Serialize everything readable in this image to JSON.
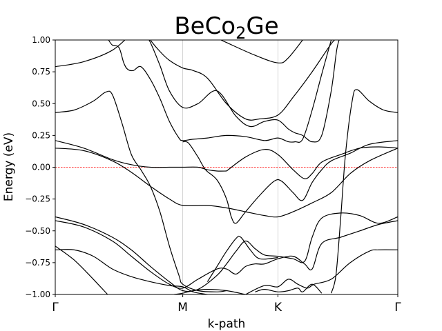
{
  "chart_data": {
    "type": "line",
    "title": "BeCo",
    "title_subscript": "2",
    "title_suffix": "Ge",
    "xlabel": "k-path",
    "ylabel": "Energy (eV)",
    "ylim": [
      -1.0,
      1.0
    ],
    "xlim": [
      0,
      3.6
    ],
    "high_symmetry_points": [
      {
        "label": "Γ",
        "x": 0
      },
      {
        "label": "M",
        "x": 1.34
      },
      {
        "label": "K",
        "x": 2.34
      },
      {
        "label": "Γ",
        "x": 3.6
      }
    ],
    "yticks": [
      {
        "value": -1.0,
        "label": "−1.00"
      },
      {
        "value": -0.75,
        "label": "−0.75"
      },
      {
        "value": -0.5,
        "label": "−0.50"
      },
      {
        "value": -0.25,
        "label": "−0.25"
      },
      {
        "value": 0.0,
        "label": "0.00"
      },
      {
        "value": 0.25,
        "label": "0.25"
      },
      {
        "value": 0.5,
        "label": "0.50"
      },
      {
        "value": 0.75,
        "label": "0.75"
      },
      {
        "value": 1.0,
        "label": "1.00"
      }
    ],
    "fermi_level": 0.0,
    "colors": {
      "bands": "#000000",
      "fermi": "#ff0000",
      "vlines": "#c8c8c8"
    },
    "grid": "vertical lines at high-symmetry points",
    "series": [
      {
        "values": [
          [
            0,
            0.79
          ],
          [
            0.3,
            0.83
          ],
          [
            0.6,
            0.92
          ],
          [
            0.8,
            1.05
          ]
        ]
      },
      {
        "values": [
          [
            1.6,
            1.05
          ],
          [
            1.8,
            0.98
          ],
          [
            2.1,
            0.88
          ],
          [
            2.34,
            0.82
          ],
          [
            2.45,
            0.86
          ],
          [
            2.65,
            1.05
          ]
        ]
      },
      {
        "values": [
          [
            0.56,
            1.0
          ],
          [
            0.6,
            0.96
          ],
          [
            0.67,
            0.94
          ],
          [
            0.72,
            0.82
          ],
          [
            0.76,
            0.77
          ],
          [
            0.82,
            0.76
          ],
          [
            0.9,
            0.79
          ],
          [
            1.0,
            0.69
          ],
          [
            1.1,
            0.54
          ],
          [
            1.2,
            0.36
          ],
          [
            1.3,
            0.23
          ],
          [
            1.34,
            0.21
          ],
          [
            1.45,
            0.22
          ],
          [
            1.6,
            0.23
          ],
          [
            1.8,
            0.25
          ],
          [
            2.0,
            0.24
          ],
          [
            2.2,
            0.21
          ],
          [
            2.34,
            0.23
          ],
          [
            2.45,
            0.2
          ],
          [
            2.52,
            0.2
          ],
          [
            2.6,
            0.22
          ],
          [
            2.7,
            0.45
          ],
          [
            2.8,
            0.73
          ],
          [
            2.9,
            1.0
          ]
        ]
      },
      {
        "values": [
          [
            0.97,
            1.05
          ],
          [
            1.0,
            1.0
          ],
          [
            1.1,
            0.91
          ],
          [
            1.2,
            0.84
          ],
          [
            1.34,
            0.78
          ],
          [
            1.45,
            0.76
          ],
          [
            1.6,
            0.7
          ],
          [
            1.8,
            0.5
          ],
          [
            2.0,
            0.38
          ],
          [
            2.15,
            0.38
          ],
          [
            2.34,
            0.41
          ],
          [
            2.5,
            0.55
          ],
          [
            2.7,
            0.75
          ],
          [
            2.9,
            0.97
          ],
          [
            2.96,
            1.01
          ]
        ]
      },
      {
        "values": [
          [
            0.94,
            1.05
          ],
          [
            1.0,
            0.98
          ],
          [
            1.1,
            0.8
          ],
          [
            1.2,
            0.6
          ],
          [
            1.34,
            0.47
          ],
          [
            1.5,
            0.5
          ],
          [
            1.7,
            0.6
          ],
          [
            1.9,
            0.4
          ],
          [
            2.05,
            0.32
          ],
          [
            2.2,
            0.36
          ],
          [
            2.34,
            0.37
          ],
          [
            2.45,
            0.3
          ],
          [
            2.52,
            0.27
          ],
          [
            2.6,
            0.25
          ],
          [
            2.7,
            0.2
          ],
          [
            2.8,
            0.25
          ],
          [
            2.9,
            0.6
          ],
          [
            2.96,
            0.93
          ],
          [
            3.0,
            1.03
          ]
        ]
      },
      {
        "values": [
          [
            0,
            0.43
          ],
          [
            0.2,
            0.45
          ],
          [
            0.4,
            0.52
          ],
          [
            0.53,
            0.59
          ],
          [
            0.6,
            0.57
          ],
          [
            0.7,
            0.35
          ],
          [
            0.8,
            0.1
          ],
          [
            0.9,
            -0.02
          ],
          [
            1.0,
            -0.15
          ],
          [
            1.1,
            -0.35
          ],
          [
            1.2,
            -0.62
          ],
          [
            1.3,
            -0.85
          ],
          [
            1.34,
            -0.92
          ],
          [
            1.5,
            -0.97
          ],
          [
            1.7,
            -0.98
          ],
          [
            1.8,
            -0.97
          ]
        ]
      },
      {
        "values": [
          [
            2.9,
            -0.99
          ],
          [
            2.95,
            -0.85
          ],
          [
            3.0,
            -0.4
          ],
          [
            3.05,
            0.1
          ],
          [
            3.12,
            0.52
          ],
          [
            3.17,
            0.61
          ],
          [
            3.3,
            0.52
          ],
          [
            3.45,
            0.45
          ],
          [
            3.6,
            0.43
          ]
        ]
      },
      {
        "values": [
          [
            0,
            0.21
          ],
          [
            0.3,
            0.15
          ],
          [
            0.6,
            0.06
          ],
          [
            0.8,
            0.02
          ],
          [
            1.0,
            0.0
          ],
          [
            1.2,
            0.0
          ],
          [
            1.34,
            0.0
          ],
          [
            1.5,
            0.0
          ],
          [
            1.6,
            -0.02
          ],
          [
            1.7,
            -0.03
          ],
          [
            1.8,
            -0.03
          ]
        ]
      },
      {
        "values": [
          [
            1.34,
            0.2
          ],
          [
            1.4,
            0.19
          ],
          [
            1.5,
            0.08
          ],
          [
            1.58,
            -0.02
          ],
          [
            1.7,
            -0.1
          ],
          [
            1.8,
            -0.25
          ],
          [
            1.85,
            -0.39
          ],
          [
            1.9,
            -0.44
          ],
          [
            2.0,
            -0.35
          ],
          [
            2.15,
            -0.22
          ],
          [
            2.3,
            -0.11
          ],
          [
            2.38,
            -0.11
          ],
          [
            2.5,
            -0.2
          ],
          [
            2.6,
            -0.26
          ],
          [
            2.7,
            -0.12
          ],
          [
            2.8,
            -0.02
          ],
          [
            2.9,
            0.05
          ],
          [
            3.1,
            0.11
          ],
          [
            3.3,
            0.18
          ],
          [
            3.6,
            0.21
          ]
        ]
      },
      {
        "values": [
          [
            1.8,
            -0.03
          ],
          [
            2.0,
            0.08
          ],
          [
            2.2,
            0.14
          ],
          [
            2.34,
            0.1
          ],
          [
            2.5,
            -0.02
          ],
          [
            2.62,
            -0.09
          ],
          [
            2.7,
            -0.05
          ],
          [
            2.8,
            0.04
          ],
          [
            3.0,
            0.1
          ],
          [
            3.2,
            0.15
          ],
          [
            3.4,
            0.16
          ],
          [
            3.6,
            0.15
          ]
        ]
      },
      {
        "values": [
          [
            0,
            0.15
          ],
          [
            0.3,
            0.13
          ],
          [
            0.6,
            0.05
          ],
          [
            0.8,
            -0.04
          ],
          [
            1.0,
            -0.15
          ],
          [
            1.2,
            -0.25
          ],
          [
            1.34,
            -0.3
          ],
          [
            1.6,
            -0.3
          ],
          [
            1.8,
            -0.32
          ],
          [
            2.0,
            -0.35
          ],
          [
            2.2,
            -0.38
          ],
          [
            2.34,
            -0.39
          ],
          [
            2.5,
            -0.35
          ],
          [
            2.7,
            -0.28
          ],
          [
            2.9,
            -0.2
          ],
          [
            3.1,
            -0.05
          ],
          [
            3.3,
            0.05
          ],
          [
            3.6,
            0.15
          ]
        ]
      },
      {
        "values": [
          [
            0,
            -0.39
          ],
          [
            0.3,
            -0.45
          ],
          [
            0.6,
            -0.55
          ],
          [
            0.8,
            -0.65
          ],
          [
            1.0,
            -0.78
          ],
          [
            1.2,
            -0.9
          ],
          [
            1.34,
            -0.97
          ],
          [
            1.5,
            -0.96
          ],
          [
            1.7,
            -0.85
          ],
          [
            1.8,
            -0.76
          ],
          [
            1.9,
            -0.66
          ],
          [
            2.0,
            -0.58
          ],
          [
            2.1,
            -0.64
          ],
          [
            2.2,
            -0.69
          ],
          [
            2.34,
            -0.7
          ],
          [
            2.5,
            -0.72
          ],
          [
            2.62,
            -0.74
          ],
          [
            2.7,
            -0.55
          ],
          [
            2.8,
            -0.4
          ],
          [
            3.0,
            -0.36
          ],
          [
            3.2,
            -0.38
          ],
          [
            3.4,
            -0.44
          ],
          [
            3.6,
            -0.39
          ]
        ]
      },
      {
        "values": [
          [
            0,
            -0.42
          ],
          [
            0.3,
            -0.47
          ],
          [
            0.6,
            -0.58
          ],
          [
            0.8,
            -0.7
          ],
          [
            1.0,
            -0.82
          ],
          [
            1.2,
            -0.92
          ],
          [
            1.34,
            -0.95
          ],
          [
            1.5,
            -0.88
          ],
          [
            1.7,
            -0.8
          ],
          [
            1.8,
            -0.8
          ],
          [
            1.9,
            -0.84
          ],
          [
            2.0,
            -0.78
          ],
          [
            2.1,
            -0.76
          ],
          [
            2.2,
            -0.76
          ],
          [
            2.34,
            -0.72
          ],
          [
            2.5,
            -0.7
          ],
          [
            2.62,
            -0.76
          ],
          [
            2.7,
            -0.8
          ],
          [
            2.8,
            -0.6
          ],
          [
            3.0,
            -0.55
          ],
          [
            3.2,
            -0.5
          ],
          [
            3.4,
            -0.45
          ],
          [
            3.6,
            -0.42
          ]
        ]
      },
      {
        "values": [
          [
            0,
            -0.65
          ],
          [
            0.2,
            -0.65
          ],
          [
            0.4,
            -0.7
          ],
          [
            0.6,
            -0.8
          ],
          [
            0.8,
            -0.86
          ],
          [
            1.0,
            -0.9
          ],
          [
            1.2,
            -0.93
          ],
          [
            1.34,
            -0.94
          ],
          [
            1.45,
            -0.98
          ],
          [
            1.6,
            -1.0
          ]
        ]
      },
      {
        "values": [
          [
            2.0,
            -1.0
          ],
          [
            2.2,
            -0.93
          ],
          [
            2.34,
            -0.94
          ],
          [
            2.45,
            -0.88
          ],
          [
            2.55,
            -0.92
          ],
          [
            2.65,
            -0.95
          ],
          [
            2.72,
            -0.92
          ],
          [
            2.9,
            -0.88
          ],
          [
            3.1,
            -0.75
          ],
          [
            3.3,
            -0.66
          ],
          [
            3.4,
            -0.65
          ],
          [
            3.6,
            -0.65
          ]
        ]
      },
      {
        "values": [
          [
            2.1,
            -0.98
          ],
          [
            2.2,
            -0.96
          ],
          [
            2.34,
            -0.98
          ],
          [
            2.45,
            -0.97
          ],
          [
            2.55,
            -0.95
          ],
          [
            2.6,
            -0.98
          ],
          [
            2.7,
            -0.92
          ],
          [
            2.8,
            -0.99
          ]
        ]
      },
      {
        "values": [
          [
            0,
            -0.62
          ],
          [
            0.2,
            -0.73
          ],
          [
            0.4,
            -0.88
          ],
          [
            0.55,
            -1.0
          ]
        ]
      },
      {
        "values": [
          [
            1.25,
            -1.0
          ],
          [
            1.34,
            -0.99
          ],
          [
            1.45,
            -0.97
          ],
          [
            1.6,
            -0.96
          ],
          [
            1.8,
            -0.97
          ],
          [
            2.0,
            -1.0
          ]
        ]
      },
      {
        "values": [
          [
            1.6,
            -0.9
          ],
          [
            1.7,
            -0.78
          ],
          [
            1.8,
            -0.66
          ],
          [
            1.9,
            -0.56
          ],
          [
            1.95,
            -0.55
          ],
          [
            2.05,
            -0.65
          ],
          [
            2.15,
            -0.72
          ],
          [
            2.34,
            -0.71
          ]
        ]
      }
    ]
  }
}
